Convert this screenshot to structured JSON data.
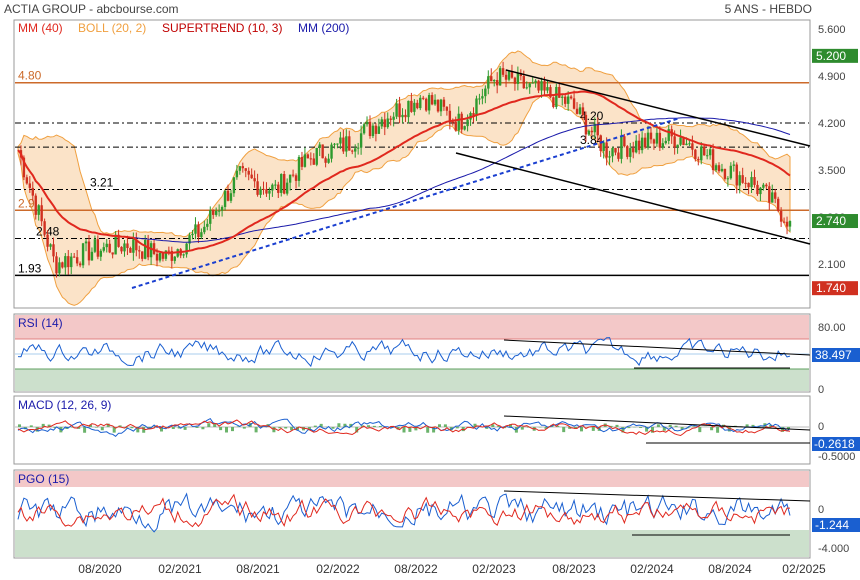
{
  "header": {
    "title": "ACTIA GROUP - abcbourse.com",
    "period": "5 ANS - HEBDO"
  },
  "legend": [
    {
      "label": "MM (40)",
      "color": "#e0281e"
    },
    {
      "label": "BOLL (20, 2)",
      "color": "#f0a040"
    },
    {
      "label": "SUPERTREND (10, 3)",
      "color": "#c00000"
    },
    {
      "label": "MM (200)",
      "color": "#1a1aaa"
    }
  ],
  "price_axis": {
    "ticks": [
      "5.600",
      "4.900",
      "4.200",
      "3.500",
      "2.800",
      "2.100"
    ],
    "badges": [
      {
        "text": "5.200",
        "color": "#2e8b2e",
        "value": 5.2
      },
      {
        "text": "2.740",
        "color": "#2e8b2e",
        "value": 2.74
      },
      {
        "text": "1.740",
        "color": "#d03020",
        "value": 1.74
      }
    ]
  },
  "levels": [
    {
      "label": "4.80",
      "value": 4.8,
      "style": "solid",
      "color": "#cc6a2a"
    },
    {
      "label": "4.20",
      "value": 4.2,
      "style": "dashdot",
      "color": "#000000"
    },
    {
      "label": "3.84",
      "value": 3.84,
      "style": "dashdot",
      "color": "#000000"
    },
    {
      "label": "3.21",
      "value": 3.21,
      "style": "dashdot",
      "color": "#000000"
    },
    {
      "label": "2.9",
      "value": 2.9,
      "style": "solid",
      "color": "#cc6a2a"
    },
    {
      "label": "2.48",
      "value": 2.48,
      "style": "dashdot",
      "color": "#000000"
    },
    {
      "label": "1.93",
      "value": 1.93,
      "style": "solid",
      "color": "#000000"
    }
  ],
  "x_axis": {
    "labels": [
      "08/2020",
      "02/2021",
      "08/2021",
      "02/2022",
      "08/2022",
      "02/2023",
      "08/2023",
      "02/2024",
      "08/2024",
      "02/2025"
    ]
  },
  "rsi": {
    "title": "RSI (14)",
    "ticks": [
      "80.00",
      "0"
    ],
    "badge": {
      "text": "38.497",
      "value": 38.497
    }
  },
  "macd": {
    "title": "MACD (12, 26, 9)",
    "ticks": [
      "0",
      "-0.5000"
    ],
    "badge": {
      "text": "-0.2618",
      "value": -0.2618
    }
  },
  "pgo": {
    "title": "PGO (15)",
    "ticks": [
      "0",
      "-4.000"
    ],
    "badge": {
      "text": "-1.244",
      "value": -1.244
    }
  },
  "chart_data": {
    "type": "candlestick",
    "title": "ACTIA GROUP",
    "price_series_approx": {
      "x": [
        "2020-01",
        "2020-03",
        "2020-05",
        "2020-08",
        "2020-11",
        "2021-02",
        "2021-05",
        "2021-08",
        "2021-11",
        "2022-02",
        "2022-05",
        "2022-08",
        "2022-11",
        "2023-02",
        "2023-05",
        "2023-08",
        "2023-11",
        "2024-02",
        "2024-05",
        "2024-08",
        "2024-11",
        "2025-01"
      ],
      "close": [
        3.8,
        2.1,
        2.3,
        2.4,
        2.2,
        2.6,
        3.4,
        3.2,
        3.7,
        3.9,
        4.3,
        4.6,
        4.2,
        4.9,
        4.7,
        4.5,
        3.8,
        3.9,
        4.0,
        3.6,
        3.3,
        2.74
      ]
    },
    "ylim": [
      1.6,
      5.7
    ],
    "levels": [
      4.8,
      4.2,
      3.84,
      3.21,
      2.9,
      2.48,
      1.93
    ],
    "last_close": 2.74
  }
}
